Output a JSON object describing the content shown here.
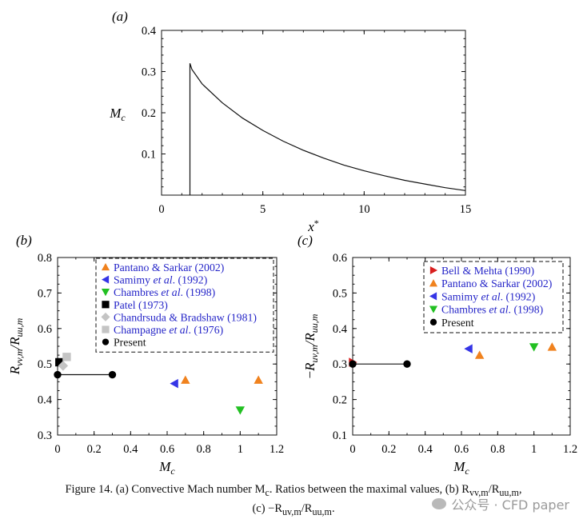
{
  "chart_data": [
    {
      "panel": "(a)",
      "type": "line",
      "xlabel": "x*",
      "ylabel": "M_c",
      "xlim": [
        0,
        15
      ],
      "ylim": [
        0,
        0.4
      ],
      "xticks": [
        "0",
        "5",
        "10",
        "15"
      ],
      "yticks": [
        "0.1",
        "0.2",
        "0.3",
        "0.4"
      ],
      "grid": false,
      "series": [
        {
          "x": [
            1.4,
            1.4,
            1.5,
            2,
            3,
            4,
            5,
            6,
            7,
            8,
            9,
            10,
            11,
            12,
            13,
            14,
            15
          ],
          "y": [
            0.0,
            0.32,
            0.305,
            0.27,
            0.224,
            0.187,
            0.157,
            0.131,
            0.109,
            0.09,
            0.073,
            0.059,
            0.047,
            0.036,
            0.027,
            0.018,
            0.011
          ]
        }
      ]
    },
    {
      "panel": "(b)",
      "type": "scatter",
      "xlabel": "M_c",
      "ylabel": "R_vv,m/R_uu,m",
      "xlim": [
        0,
        1.2
      ],
      "ylim": [
        0.3,
        0.8
      ],
      "xticks": [
        "0",
        "0.2",
        "0.4",
        "0.6",
        "0.8",
        "1",
        "1.2"
      ],
      "yticks": [
        "0.3",
        "0.4",
        "0.5",
        "0.6",
        "0.7",
        "0.8"
      ],
      "legend_position": "top-right",
      "series": [
        {
          "name": "Pantano & Sarkar (2002)",
          "marker": "triangle-up",
          "color": "#f0821e",
          "x": [
            0.7,
            1.1
          ],
          "y": [
            0.455,
            0.455
          ]
        },
        {
          "name": "Samimy et al. (1992)",
          "marker": "triangle-left",
          "color": "#3535e6",
          "x": [
            0.64
          ],
          "y": [
            0.445
          ]
        },
        {
          "name": "Chambres et al. (1998)",
          "marker": "triangle-down",
          "color": "#22c022",
          "x": [
            1.0
          ],
          "y": [
            0.37
          ]
        },
        {
          "name": "Patel (1973)",
          "marker": "square",
          "color": "#000000",
          "x": [
            0.01
          ],
          "y": [
            0.505
          ]
        },
        {
          "name": "Chandrsuda & Bradshaw (1981)",
          "marker": "diamond",
          "color": "#c4c4c4",
          "x": [
            0.03
          ],
          "y": [
            0.495
          ]
        },
        {
          "name": "Champagne et al. (1976)",
          "marker": "square",
          "color": "#c4c4c4",
          "x": [
            0.05
          ],
          "y": [
            0.52
          ]
        },
        {
          "name": "Present",
          "marker": "circle",
          "color": "#000000",
          "x": [
            0.0,
            0.3
          ],
          "y": [
            0.47,
            0.47
          ],
          "line": true
        }
      ],
      "legend_labels": [
        {
          "plain": "Pantano & Sarkar (",
          "link": "2002",
          "tail": ")"
        },
        {
          "plain": "Samimy ",
          "ital": "et al",
          "dot": ". (",
          "link": "1992",
          "tail": ")"
        },
        {
          "plain": "Chambres ",
          "ital": "et al",
          "dot": ". (",
          "link": "1998",
          "tail": ")"
        },
        {
          "plain": "Patel (",
          "link": "1973",
          "tail": ")"
        },
        {
          "plain": "Chandrsuda & Bradshaw (",
          "link": "1981",
          "tail": ")"
        },
        {
          "plain": "Champagne ",
          "ital": "et al",
          "dot": ". (",
          "link": "1976",
          "tail": ")"
        },
        {
          "plain": "Present"
        }
      ]
    },
    {
      "panel": "(c)",
      "type": "scatter",
      "xlabel": "M_c",
      "ylabel": "−R_uv,m/R_uu,m",
      "xlim": [
        0,
        1.2
      ],
      "ylim": [
        0.1,
        0.6
      ],
      "xticks": [
        "0",
        "0.2",
        "0.4",
        "0.6",
        "0.8",
        "1",
        "1.2"
      ],
      "yticks": [
        "0.1",
        "0.2",
        "0.3",
        "0.4",
        "0.5",
        "0.6"
      ],
      "legend_position": "top-right",
      "series": [
        {
          "name": "Bell & Mehta (1990)",
          "marker": "triangle-right",
          "color": "#d81e1e",
          "x": [
            0.0
          ],
          "y": [
            0.305
          ]
        },
        {
          "name": "Pantano & Sarkar (2002)",
          "marker": "triangle-up",
          "color": "#f0821e",
          "x": [
            0.7,
            1.1
          ],
          "y": [
            0.325,
            0.348
          ]
        },
        {
          "name": "Samimy et al. (1992)",
          "marker": "triangle-left",
          "color": "#3535e6",
          "x": [
            0.64
          ],
          "y": [
            0.343
          ]
        },
        {
          "name": "Chambres et al. (1998)",
          "marker": "triangle-down",
          "color": "#22c022",
          "x": [
            1.0
          ],
          "y": [
            0.348
          ]
        },
        {
          "name": "Present",
          "marker": "circle",
          "color": "#000000",
          "x": [
            0.0,
            0.3
          ],
          "y": [
            0.3,
            0.3
          ],
          "line": true
        }
      ],
      "legend_labels": [
        {
          "plain": "Bell & Mehta (",
          "link": "1990",
          "tail": ")"
        },
        {
          "plain": "Pantano & Sarkar (",
          "link": "2002",
          "tail": ")"
        },
        {
          "plain": "Samimy ",
          "ital": "et al",
          "dot": ". (",
          "link": "1992",
          "tail": ")"
        },
        {
          "plain": "Chambres ",
          "ital": "et al",
          "dot": ". (",
          "link": "1998",
          "tail": ")"
        },
        {
          "plain": "Present"
        }
      ]
    }
  ],
  "caption": {
    "line1": "Figure  14.  (a) Convective Mach number M",
    "line1_sub": "c",
    "line1_b": ". Ratios between the maximal values, (b) R",
    "line1_r1": "vv,m",
    "line1_c": "/R",
    "line1_r2": "uu,m",
    "line1_d": ",",
    "line2_a": "(c) −R",
    "line2_r1": "uv,m",
    "line2_b": "/R",
    "line2_r2": "uu,m",
    "line2_c": "."
  },
  "watermark": "公众号 · CFD paper",
  "colors": {
    "link": "#2525c8",
    "axis": "#111111"
  }
}
